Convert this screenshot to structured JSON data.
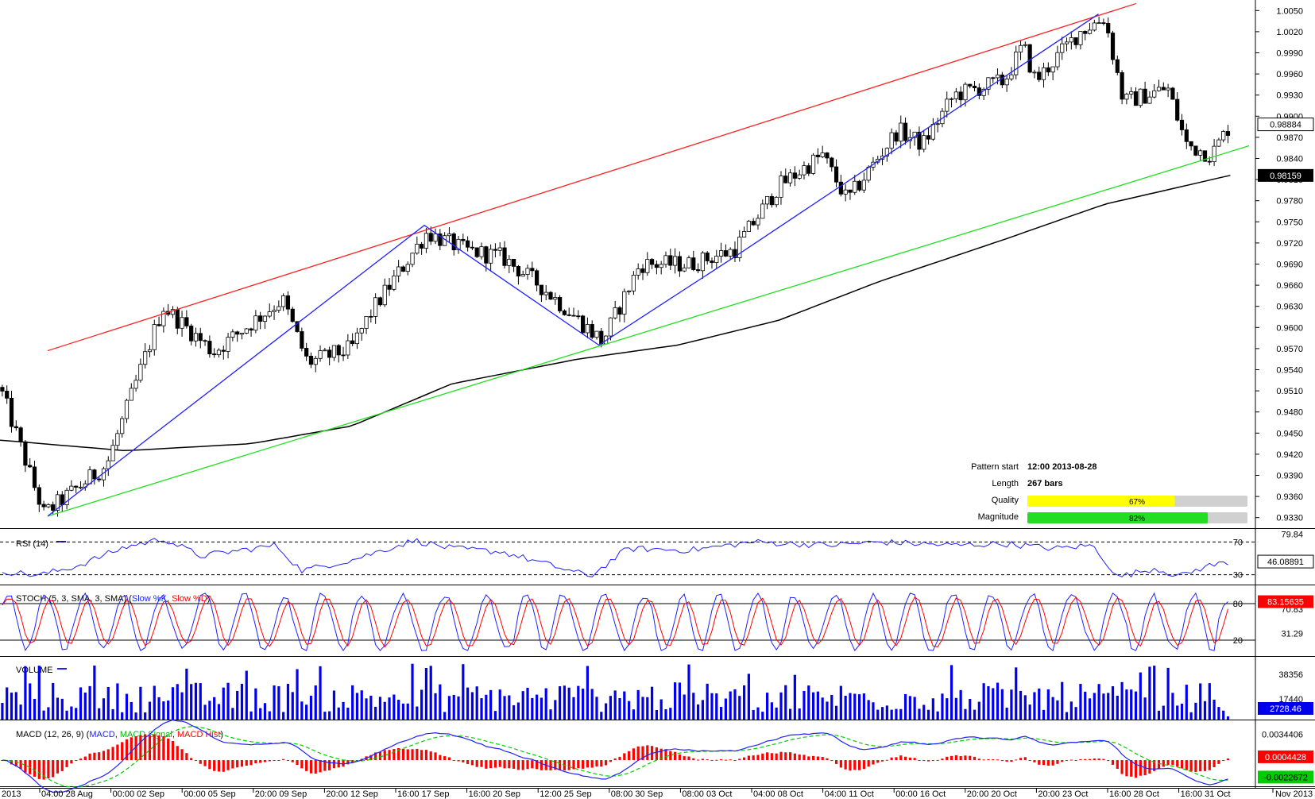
{
  "chart_data": [
    {
      "type": "candlestick",
      "panel": "price",
      "y_ticks": [
        "1.0050",
        "1.0020",
        "0.9990",
        "0.9960",
        "0.9930",
        "0.9900",
        "0.9870",
        "0.9840",
        "0.9810",
        "0.9780",
        "0.9750",
        "0.9720",
        "0.9690",
        "0.9660",
        "0.9630",
        "0.9600",
        "0.9570",
        "0.9540",
        "0.9510",
        "0.9480",
        "0.9450",
        "0.9420",
        "0.9390",
        "0.9360",
        "0.9330"
      ],
      "ylim": [
        0.9315,
        1.0065
      ],
      "x_ticks": [
        "2013",
        "04:00 28 Aug",
        "00:00 02 Sep",
        "00:00 05 Sep",
        "20:00 09 Sep",
        "20:00 12 Sep",
        "16:00 17 Sep",
        "16:00 20 Sep",
        "12:00 25 Sep",
        "08:00 30 Sep",
        "08:00 03 Oct",
        "04:00 08 Oct",
        "04:00 11 Oct",
        "00:00 16 Oct",
        "20:00 20 Oct",
        "20:00 23 Oct",
        "16:00 28 Oct",
        "16:00 31 Oct",
        "Nov 2013"
      ],
      "price_path": [
        {
          "x": 0,
          "y": 0.9515
        },
        {
          "x": 0.035,
          "y": 0.9335
        },
        {
          "x": 0.085,
          "y": 0.9405
        },
        {
          "x": 0.13,
          "y": 0.963
        },
        {
          "x": 0.17,
          "y": 0.9565
        },
        {
          "x": 0.225,
          "y": 0.964
        },
        {
          "x": 0.245,
          "y": 0.955
        },
        {
          "x": 0.28,
          "y": 0.957
        },
        {
          "x": 0.295,
          "y": 0.962
        },
        {
          "x": 0.34,
          "y": 0.9735
        },
        {
          "x": 0.37,
          "y": 0.971
        },
        {
          "x": 0.4,
          "y": 0.97
        },
        {
          "x": 0.43,
          "y": 0.966
        },
        {
          "x": 0.48,
          "y": 0.958
        },
        {
          "x": 0.51,
          "y": 0.969
        },
        {
          "x": 0.55,
          "y": 0.969
        },
        {
          "x": 0.585,
          "y": 0.971
        },
        {
          "x": 0.62,
          "y": 0.98
        },
        {
          "x": 0.655,
          "y": 0.9845
        },
        {
          "x": 0.675,
          "y": 0.978
        },
        {
          "x": 0.715,
          "y": 0.988
        },
        {
          "x": 0.735,
          "y": 0.986
        },
        {
          "x": 0.76,
          "y": 0.993
        },
        {
          "x": 0.8,
          "y": 0.995
        },
        {
          "x": 0.815,
          "y": 1.0
        },
        {
          "x": 0.825,
          "y": 0.995
        },
        {
          "x": 0.86,
          "y": 1.002
        },
        {
          "x": 0.88,
          "y": 1.004
        },
        {
          "x": 0.895,
          "y": 0.992
        },
        {
          "x": 0.93,
          "y": 0.994
        },
        {
          "x": 0.945,
          "y": 0.986
        },
        {
          "x": 0.965,
          "y": 0.9845
        },
        {
          "x": 0.98,
          "y": 0.9888
        }
      ],
      "ma_200": [
        {
          "x": 0,
          "y": 0.944
        },
        {
          "x": 0.1,
          "y": 0.9425
        },
        {
          "x": 0.2,
          "y": 0.9435
        },
        {
          "x": 0.28,
          "y": 0.946
        },
        {
          "x": 0.36,
          "y": 0.952
        },
        {
          "x": 0.46,
          "y": 0.9555
        },
        {
          "x": 0.54,
          "y": 0.9575
        },
        {
          "x": 0.62,
          "y": 0.961
        },
        {
          "x": 0.7,
          "y": 0.9665
        },
        {
          "x": 0.8,
          "y": 0.9725
        },
        {
          "x": 0.88,
          "y": 0.9775
        },
        {
          "x": 0.98,
          "y": 0.9816
        }
      ],
      "pattern_lines": {
        "upper_trendline": {
          "color": "#ff2020",
          "from": {
            "x": 0.038,
            "y": 0.9567
          },
          "to": {
            "x": 0.905,
            "y": 1.006
          }
        },
        "lower_trendline": {
          "color": "#20e020",
          "from": {
            "x": 0.038,
            "y": 0.9332
          },
          "to": {
            "x": 0.995,
            "y": 0.9858
          }
        },
        "zigzag": {
          "color": "#2020ff",
          "points": [
            {
              "x": 0.038,
              "y": 0.9332
            },
            {
              "x": 0.338,
              "y": 0.9745
            },
            {
              "x": 0.477,
              "y": 0.9575
            },
            {
              "x": 0.585,
              "y": 0.97
            },
            {
              "x": 0.875,
              "y": 1.0045
            }
          ]
        }
      },
      "current_price": "0.98884",
      "ma_value": "0.98159"
    },
    {
      "type": "line",
      "panel": "rsi",
      "title": "RSI (14)",
      "levels": [
        "70",
        "30"
      ],
      "ylim": [
        18,
        84
      ],
      "y_ticks": [
        "79.84"
      ],
      "current_value": "46.08891",
      "series_path": [
        {
          "x": 0,
          "y": 35
        },
        {
          "x": 0.03,
          "y": 29
        },
        {
          "x": 0.06,
          "y": 40
        },
        {
          "x": 0.1,
          "y": 64
        },
        {
          "x": 0.13,
          "y": 74
        },
        {
          "x": 0.16,
          "y": 53
        },
        {
          "x": 0.22,
          "y": 66
        },
        {
          "x": 0.24,
          "y": 35
        },
        {
          "x": 0.28,
          "y": 48
        },
        {
          "x": 0.33,
          "y": 72
        },
        {
          "x": 0.36,
          "y": 62
        },
        {
          "x": 0.4,
          "y": 58
        },
        {
          "x": 0.47,
          "y": 28
        },
        {
          "x": 0.5,
          "y": 62
        },
        {
          "x": 0.55,
          "y": 60
        },
        {
          "x": 0.6,
          "y": 70
        },
        {
          "x": 0.66,
          "y": 66
        },
        {
          "x": 0.7,
          "y": 70
        },
        {
          "x": 0.76,
          "y": 66
        },
        {
          "x": 0.8,
          "y": 68
        },
        {
          "x": 0.84,
          "y": 62
        },
        {
          "x": 0.87,
          "y": 66
        },
        {
          "x": 0.88,
          "y": 48
        },
        {
          "x": 0.89,
          "y": 27
        },
        {
          "x": 0.92,
          "y": 38
        },
        {
          "x": 0.94,
          "y": 28
        },
        {
          "x": 0.96,
          "y": 40
        },
        {
          "x": 0.98,
          "y": 46
        }
      ]
    },
    {
      "type": "line",
      "panel": "stoch",
      "title": "STOCH (5, 3, SMA, 3, SMA)",
      "series_names": [
        "Slow %K",
        "Slow %D"
      ],
      "levels": [
        "80",
        "20"
      ],
      "ylim": [
        -6,
        106
      ],
      "y_ticks": [
        "70.83",
        "31.29"
      ],
      "current_value": "83.15635"
    },
    {
      "type": "bar",
      "panel": "volume",
      "title": "VOLUME",
      "y_ticks": [
        "38356",
        "17440"
      ],
      "ylim": [
        0,
        52000
      ],
      "current_value": "2728.46"
    },
    {
      "type": "line",
      "panel": "macd",
      "title": "MACD (12, 26, 9)",
      "series_names": [
        "MACD",
        "MACD Signal",
        "MACD Hist"
      ],
      "y_ticks": [
        "0.0034406"
      ],
      "ylim": [
        -0.0035,
        0.005
      ],
      "current_value_signal": "0.0004428",
      "current_value_macd": "-0.0022672"
    }
  ],
  "pattern_info": {
    "pattern_start_label": "Pattern start",
    "pattern_start_value": "12:00 2013-08-28",
    "length_label": "Length",
    "length_value": "267 bars",
    "quality_label": "Quality",
    "quality_value": "67%",
    "quality_pct": 67,
    "magnitude_label": "Magnitude",
    "magnitude_value": "82%",
    "magnitude_pct": 82
  },
  "colors": {
    "up_candle": "#ffffff",
    "down_candle": "#000000",
    "ma": "#000000",
    "rsi": "#2020ff",
    "stoch_k": "#2020ff",
    "stoch_d": "#ff0000",
    "volume": "#0000ee",
    "macd": "#2020ff",
    "signal": "#00cc00",
    "hist": "#ff0000",
    "quality_bar": "#ffff00",
    "magnitude_bar": "#22dd22",
    "bar_track": "#d0d0d0"
  }
}
